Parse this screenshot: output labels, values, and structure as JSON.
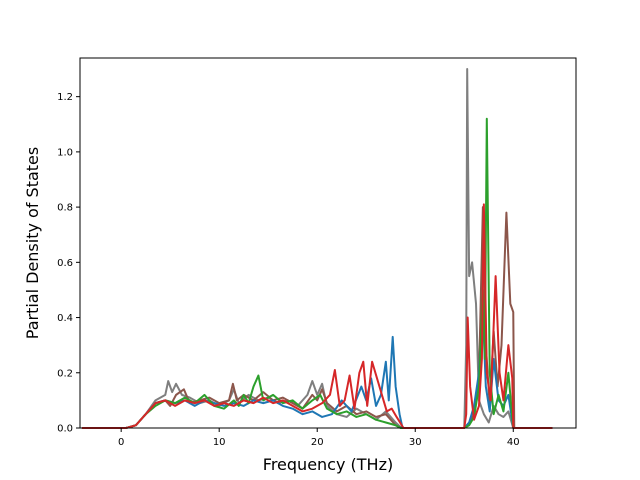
{
  "chart_data": {
    "type": "line",
    "title": "",
    "xlabel": "Frequency (THz)",
    "ylabel": "Partial Density of States",
    "xlim": [
      -4.2,
      46.4
    ],
    "ylim": [
      0,
      1.34
    ],
    "xticks": [
      0,
      10,
      20,
      30,
      40
    ],
    "yticks": [
      0.0,
      0.2,
      0.4,
      0.6,
      0.8,
      1.0,
      1.2
    ],
    "xtick_labels": [
      "0",
      "10",
      "20",
      "30",
      "40"
    ],
    "ytick_labels": [
      "0.0",
      "0.2",
      "0.4",
      "0.6",
      "0.8",
      "1.0",
      "1.2"
    ],
    "grid": false,
    "legend": "none",
    "series": [
      {
        "color": "#7f7f7f",
        "points": [
          [
            -4,
            0
          ],
          [
            0.5,
            0
          ],
          [
            1.5,
            0.01
          ],
          [
            2.5,
            0.05
          ],
          [
            3.5,
            0.1
          ],
          [
            4.5,
            0.12
          ],
          [
            4.8,
            0.17
          ],
          [
            5.2,
            0.13
          ],
          [
            5.6,
            0.16
          ],
          [
            6.2,
            0.12
          ],
          [
            7,
            0.11
          ],
          [
            8,
            0.09
          ],
          [
            9,
            0.1
          ],
          [
            10,
            0.08
          ],
          [
            11,
            0.1
          ],
          [
            11.5,
            0.14
          ],
          [
            12,
            0.09
          ],
          [
            13,
            0.12
          ],
          [
            14,
            0.1
          ],
          [
            15,
            0.11
          ],
          [
            16,
            0.09
          ],
          [
            17,
            0.1
          ],
          [
            18,
            0.08
          ],
          [
            19,
            0.12
          ],
          [
            19.5,
            0.17
          ],
          [
            20,
            0.12
          ],
          [
            20.5,
            0.16
          ],
          [
            21,
            0.08
          ],
          [
            22,
            0.05
          ],
          [
            23,
            0.04
          ],
          [
            24,
            0.07
          ],
          [
            25,
            0.05
          ],
          [
            26,
            0.03
          ],
          [
            27,
            0.06
          ],
          [
            28,
            0.02
          ],
          [
            28.6,
            0.0
          ],
          [
            35,
            0.0
          ],
          [
            35.2,
            0.3
          ],
          [
            35.3,
            1.3
          ],
          [
            35.5,
            0.55
          ],
          [
            35.8,
            0.6
          ],
          [
            36.2,
            0.45
          ],
          [
            36.5,
            0.1
          ],
          [
            37,
            0.05
          ],
          [
            37.5,
            0.02
          ],
          [
            38,
            0.08
          ],
          [
            38.5,
            0.05
          ],
          [
            39,
            0.04
          ],
          [
            39.5,
            0.06
          ],
          [
            40,
            0.0
          ],
          [
            44,
            0
          ]
        ]
      },
      {
        "color": "#8c564b",
        "points": [
          [
            -4,
            0
          ],
          [
            0.5,
            0
          ],
          [
            1.5,
            0.01
          ],
          [
            2.5,
            0.05
          ],
          [
            3.5,
            0.09
          ],
          [
            4.5,
            0.1
          ],
          [
            5,
            0.08
          ],
          [
            5.6,
            0.12
          ],
          [
            6.4,
            0.14
          ],
          [
            7,
            0.09
          ],
          [
            8,
            0.1
          ],
          [
            9,
            0.11
          ],
          [
            10,
            0.09
          ],
          [
            11,
            0.1
          ],
          [
            11.4,
            0.16
          ],
          [
            11.8,
            0.1
          ],
          [
            12.5,
            0.12
          ],
          [
            13.5,
            0.1
          ],
          [
            14.5,
            0.13
          ],
          [
            15.5,
            0.1
          ],
          [
            16.5,
            0.11
          ],
          [
            17.5,
            0.09
          ],
          [
            18.5,
            0.07
          ],
          [
            19.5,
            0.12
          ],
          [
            20,
            0.1
          ],
          [
            20.5,
            0.14
          ],
          [
            21,
            0.09
          ],
          [
            22,
            0.06
          ],
          [
            23,
            0.08
          ],
          [
            24,
            0.05
          ],
          [
            25,
            0.06
          ],
          [
            26,
            0.04
          ],
          [
            27,
            0.05
          ],
          [
            28,
            0.01
          ],
          [
            28.6,
            0.0
          ],
          [
            35,
            0.0
          ],
          [
            35.5,
            0.02
          ],
          [
            36,
            0.05
          ],
          [
            36.5,
            0.18
          ],
          [
            36.9,
            0.8
          ],
          [
            37.2,
            0.3
          ],
          [
            37.6,
            0.08
          ],
          [
            38,
            0.35
          ],
          [
            38.4,
            0.15
          ],
          [
            38.8,
            0.3
          ],
          [
            39.3,
            0.78
          ],
          [
            39.7,
            0.45
          ],
          [
            40.0,
            0.42
          ],
          [
            40.1,
            0.0
          ],
          [
            44,
            0
          ]
        ]
      },
      {
        "color": "#1f77b4",
        "points": [
          [
            -4,
            0
          ],
          [
            0.5,
            0
          ],
          [
            1.5,
            0.01
          ],
          [
            2.5,
            0.05
          ],
          [
            3.5,
            0.09
          ],
          [
            4.5,
            0.1
          ],
          [
            5.5,
            0.09
          ],
          [
            6.5,
            0.1
          ],
          [
            7.5,
            0.08
          ],
          [
            8.5,
            0.1
          ],
          [
            9.5,
            0.09
          ],
          [
            10.5,
            0.08
          ],
          [
            11.5,
            0.09
          ],
          [
            12.5,
            0.08
          ],
          [
            13.5,
            0.1
          ],
          [
            14.5,
            0.09
          ],
          [
            15.5,
            0.1
          ],
          [
            16.5,
            0.08
          ],
          [
            17.5,
            0.07
          ],
          [
            18.5,
            0.05
          ],
          [
            19.5,
            0.06
          ],
          [
            20.5,
            0.04
          ],
          [
            21.5,
            0.05
          ],
          [
            22.5,
            0.1
          ],
          [
            23.5,
            0.06
          ],
          [
            24.5,
            0.15
          ],
          [
            25,
            0.1
          ],
          [
            25.5,
            0.18
          ],
          [
            26,
            0.08
          ],
          [
            26.5,
            0.12
          ],
          [
            27,
            0.24
          ],
          [
            27.3,
            0.1
          ],
          [
            27.7,
            0.33
          ],
          [
            28,
            0.15
          ],
          [
            28.4,
            0.05
          ],
          [
            28.7,
            0.0
          ],
          [
            35,
            0.0
          ],
          [
            35.5,
            0.02
          ],
          [
            36,
            0.08
          ],
          [
            36.5,
            0.2
          ],
          [
            36.9,
            0.42
          ],
          [
            37.2,
            0.15
          ],
          [
            37.6,
            0.06
          ],
          [
            38,
            0.25
          ],
          [
            38.5,
            0.1
          ],
          [
            39,
            0.08
          ],
          [
            39.5,
            0.12
          ],
          [
            40,
            0.0
          ],
          [
            44,
            0
          ]
        ]
      },
      {
        "color": "#2ca02c",
        "points": [
          [
            -4,
            0
          ],
          [
            0.5,
            0
          ],
          [
            1.5,
            0.01
          ],
          [
            2.5,
            0.05
          ],
          [
            3.5,
            0.08
          ],
          [
            4.5,
            0.1
          ],
          [
            5.5,
            0.09
          ],
          [
            6.5,
            0.11
          ],
          [
            7.5,
            0.09
          ],
          [
            8.5,
            0.12
          ],
          [
            9.5,
            0.08
          ],
          [
            10.5,
            0.07
          ],
          [
            11.5,
            0.1
          ],
          [
            12,
            0.08
          ],
          [
            12.5,
            0.12
          ],
          [
            13,
            0.09
          ],
          [
            13.5,
            0.15
          ],
          [
            14,
            0.19
          ],
          [
            14.5,
            0.1
          ],
          [
            15.5,
            0.12
          ],
          [
            16.5,
            0.09
          ],
          [
            17.5,
            0.1
          ],
          [
            18.5,
            0.07
          ],
          [
            19.5,
            0.1
          ],
          [
            20.3,
            0.12
          ],
          [
            21,
            0.07
          ],
          [
            22,
            0.05
          ],
          [
            23,
            0.06
          ],
          [
            24,
            0.04
          ],
          [
            25,
            0.05
          ],
          [
            26,
            0.03
          ],
          [
            27,
            0.02
          ],
          [
            28,
            0.01
          ],
          [
            28.5,
            0.0
          ],
          [
            35,
            0.0
          ],
          [
            35.5,
            0.01
          ],
          [
            36,
            0.04
          ],
          [
            36.5,
            0.15
          ],
          [
            36.9,
            0.5
          ],
          [
            37.1,
            0.25
          ],
          [
            37.3,
            1.12
          ],
          [
            37.6,
            0.2
          ],
          [
            38,
            0.05
          ],
          [
            38.5,
            0.12
          ],
          [
            39,
            0.06
          ],
          [
            39.5,
            0.2
          ],
          [
            39.8,
            0.08
          ],
          [
            40,
            0.0
          ],
          [
            44,
            0
          ]
        ]
      },
      {
        "color": "#d62728",
        "points": [
          [
            -4,
            0
          ],
          [
            0.5,
            0
          ],
          [
            1.5,
            0.01
          ],
          [
            2.5,
            0.05
          ],
          [
            3.5,
            0.09
          ],
          [
            4.5,
            0.1
          ],
          [
            5.5,
            0.08
          ],
          [
            6.5,
            0.1
          ],
          [
            7.5,
            0.09
          ],
          [
            8.5,
            0.1
          ],
          [
            9.5,
            0.08
          ],
          [
            10.5,
            0.09
          ],
          [
            11.5,
            0.08
          ],
          [
            12.5,
            0.1
          ],
          [
            13.5,
            0.09
          ],
          [
            14.5,
            0.11
          ],
          [
            15.5,
            0.09
          ],
          [
            16.5,
            0.1
          ],
          [
            17.5,
            0.08
          ],
          [
            18.5,
            0.06
          ],
          [
            19.5,
            0.07
          ],
          [
            20.5,
            0.09
          ],
          [
            21.3,
            0.12
          ],
          [
            21.8,
            0.21
          ],
          [
            22.3,
            0.08
          ],
          [
            22.8,
            0.1
          ],
          [
            23.3,
            0.19
          ],
          [
            23.8,
            0.07
          ],
          [
            24.3,
            0.2
          ],
          [
            24.7,
            0.24
          ],
          [
            25.1,
            0.08
          ],
          [
            25.6,
            0.24
          ],
          [
            26.1,
            0.18
          ],
          [
            26.6,
            0.12
          ],
          [
            27.1,
            0.06
          ],
          [
            27.6,
            0.07
          ],
          [
            28.1,
            0.04
          ],
          [
            28.8,
            0.0
          ],
          [
            35,
            0.0
          ],
          [
            35.2,
            0.05
          ],
          [
            35.35,
            0.4
          ],
          [
            35.6,
            0.15
          ],
          [
            36,
            0.03
          ],
          [
            36.5,
            0.08
          ],
          [
            36.8,
            0.25
          ],
          [
            37.0,
            0.81
          ],
          [
            37.3,
            0.2
          ],
          [
            37.7,
            0.1
          ],
          [
            38.2,
            0.55
          ],
          [
            38.6,
            0.2
          ],
          [
            39,
            0.1
          ],
          [
            39.5,
            0.3
          ],
          [
            39.9,
            0.18
          ],
          [
            40,
            0.0
          ],
          [
            44,
            0
          ]
        ]
      }
    ]
  }
}
